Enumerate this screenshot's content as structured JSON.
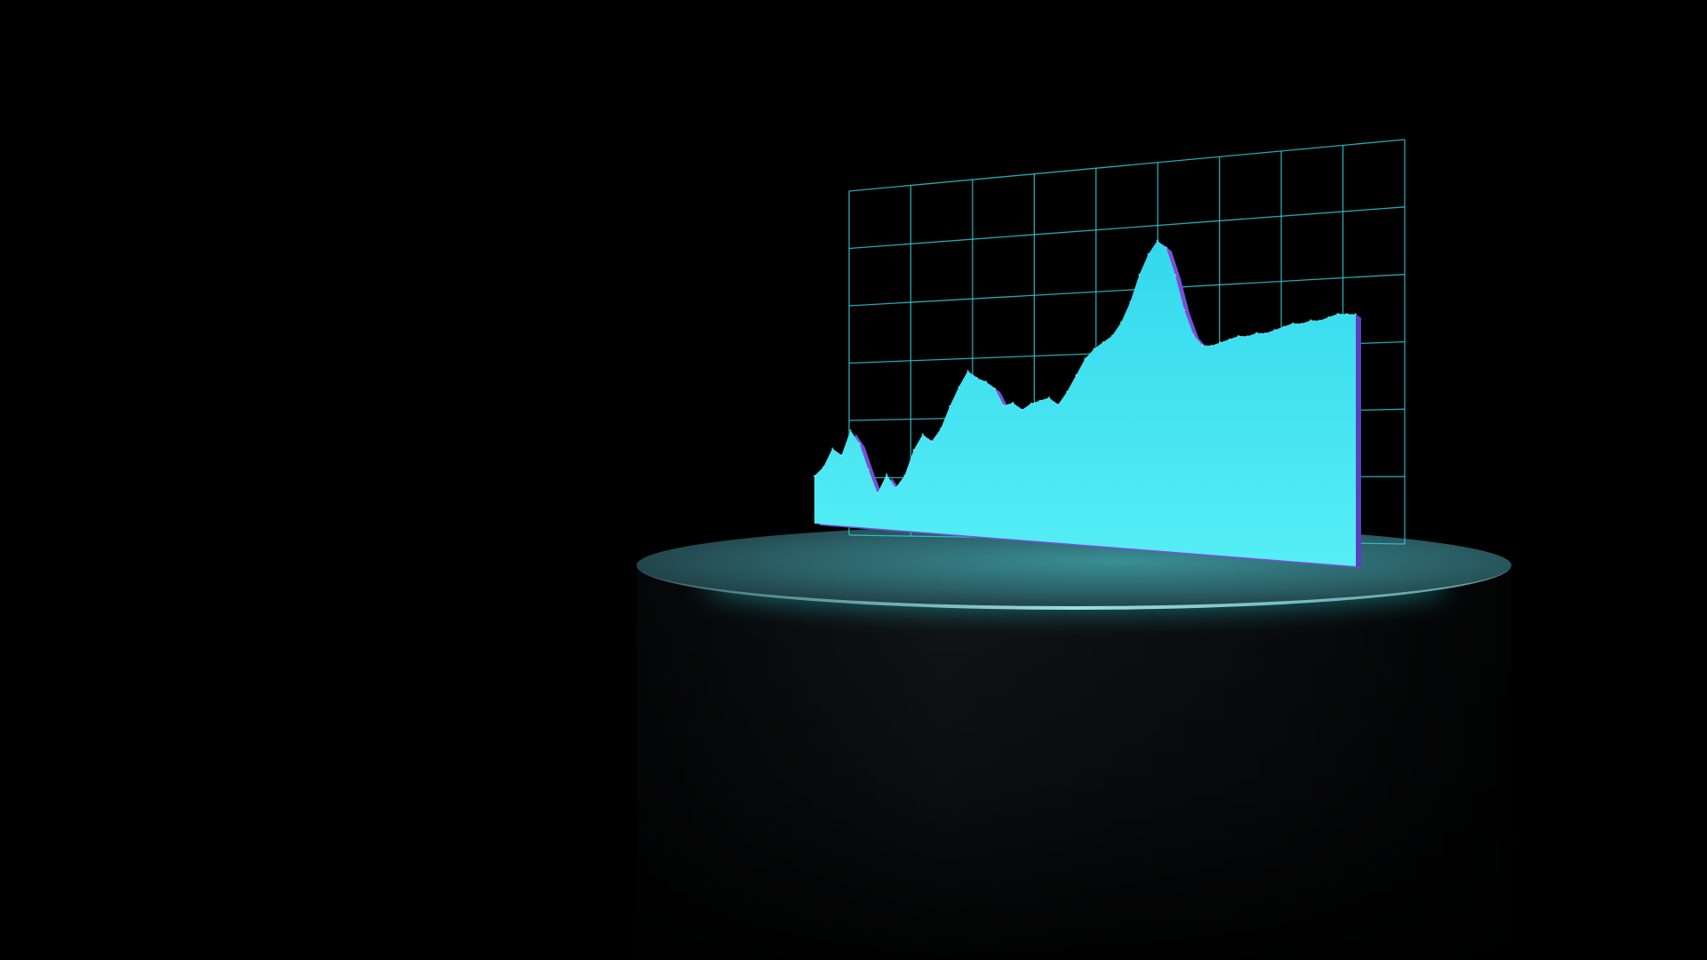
{
  "scene": {
    "background_color": "#000000",
    "grid_color": "#2fd2dc",
    "area_color_top": "#3cdff0",
    "area_color_bottom": "#55f0f6",
    "area_edge_color": "#7a4fd8",
    "pedestal_color": "#0d1012",
    "pedestal_rim_color": "#7fd8da",
    "glow_color": "#36f0ff"
  },
  "chart_data": {
    "type": "area",
    "grid": true,
    "grid_columns": 9,
    "grid_rows": 6,
    "ylim": [
      0,
      100
    ],
    "x": [
      0,
      1,
      2,
      3,
      4,
      5,
      6,
      7,
      8,
      9,
      10,
      11,
      12,
      13,
      14,
      15,
      16,
      17,
      18,
      19,
      20,
      21,
      22,
      23,
      24,
      25,
      26,
      27,
      28,
      29,
      30,
      31,
      32,
      33,
      34,
      35,
      36,
      37,
      38,
      39,
      40,
      41,
      42,
      43,
      44,
      45,
      46,
      47,
      48,
      49,
      50,
      51,
      52,
      53,
      54,
      55,
      56,
      57,
      58,
      59,
      60
    ],
    "values": [
      15,
      18,
      24,
      22,
      30,
      26,
      18,
      11,
      17,
      13,
      17,
      25,
      30,
      28,
      32,
      39,
      45,
      50,
      48,
      47,
      45,
      40,
      41,
      39,
      41,
      42,
      43,
      41,
      45,
      50,
      55,
      58,
      60,
      62,
      66,
      72,
      80,
      86,
      90,
      88,
      80,
      70,
      63,
      60,
      60,
      61,
      62,
      63,
      63,
      64,
      64,
      65,
      66,
      67,
      67,
      68,
      68,
      69,
      70,
      70,
      70
    ]
  }
}
